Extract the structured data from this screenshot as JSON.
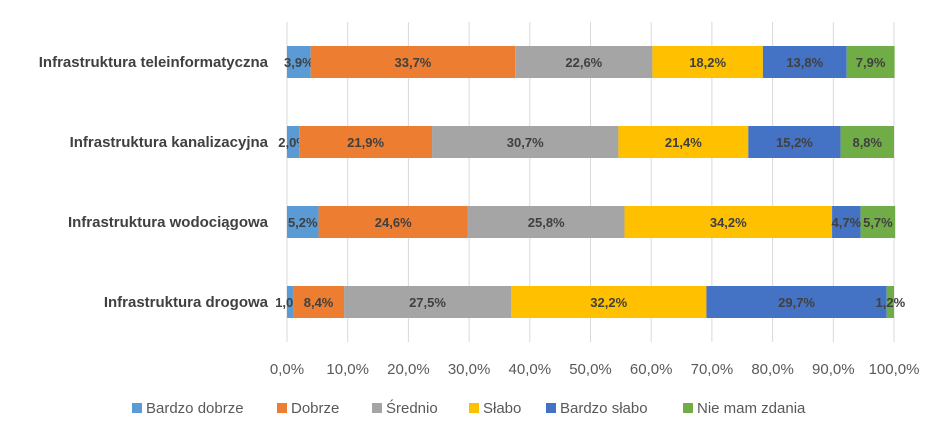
{
  "chart_data": {
    "type": "bar",
    "orientation": "horizontal",
    "stacked": true,
    "categories": [
      "Infrastruktura teleinformatyczna",
      "Infrastruktura kanalizacyjna",
      "Infrastruktura wodociągowa",
      "Infrastruktura drogowa"
    ],
    "series": [
      {
        "name": "Bardzo dobrze",
        "color": "#5B9BD5",
        "values": [
          3.9,
          2.0,
          5.2,
          1.0
        ],
        "labels": [
          "3,9%",
          "2,0%",
          "5,2%",
          "1,0%"
        ]
      },
      {
        "name": "Dobrze",
        "color": "#ED7D31",
        "values": [
          33.7,
          21.9,
          24.6,
          8.4
        ],
        "labels": [
          "33,7%",
          "21,9%",
          "24,6%",
          "8,4%"
        ]
      },
      {
        "name": "Średnio",
        "color": "#A5A5A5",
        "values": [
          22.6,
          30.7,
          25.8,
          27.5
        ],
        "labels": [
          "22,6%",
          "30,7%",
          "25,8%",
          "27,5%"
        ]
      },
      {
        "name": "Słabo",
        "color": "#FFC000",
        "values": [
          18.2,
          21.4,
          34.2,
          32.2
        ],
        "labels": [
          "18,2%",
          "21,4%",
          "34,2%",
          "32,2%"
        ]
      },
      {
        "name": "Bardzo słabo",
        "color": "#4472C4",
        "values": [
          13.8,
          15.2,
          4.7,
          29.7
        ],
        "labels": [
          "13,8%",
          "15,2%",
          "4,7%",
          "29,7%"
        ]
      },
      {
        "name": "Nie mam zdania",
        "color": "#70AD47",
        "values": [
          7.9,
          8.8,
          5.7,
          1.2
        ],
        "labels": [
          "7,9%",
          "8,8%",
          "5,7%",
          "1,2%"
        ]
      }
    ],
    "xlim": [
      0,
      100
    ],
    "x_ticks": [
      0,
      10,
      20,
      30,
      40,
      50,
      60,
      70,
      80,
      90,
      100
    ],
    "x_tick_labels": [
      "0,0%",
      "10,0%",
      "20,0%",
      "30,0%",
      "40,0%",
      "50,0%",
      "60,0%",
      "70,0%",
      "80,0%",
      "90,0%",
      "100,0%"
    ],
    "grid": true,
    "legend_position": "bottom",
    "title": "",
    "xlabel": "",
    "ylabel": ""
  }
}
